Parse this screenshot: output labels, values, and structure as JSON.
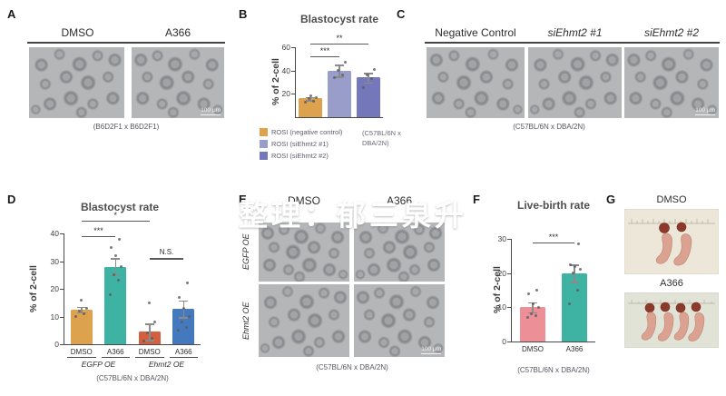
{
  "panels": {
    "A": {
      "letter": "A",
      "col_headers": [
        "DMSO",
        "A366"
      ],
      "caption": "(B6D2F1 x B6D2F1)",
      "scalebar": "100 μm"
    },
    "B": {
      "letter": "B",
      "legend": [
        {
          "label": "ROSI (negative control)",
          "color": "#dda24d"
        },
        {
          "label": "ROSI (siEhmt2 #1)",
          "color": "#999dc9"
        },
        {
          "label": "ROSI (siEhmt2 #2)",
          "color": "#7478ba"
        }
      ],
      "note": "(C57BL/6N x DBA/2N)"
    },
    "C": {
      "letter": "C",
      "col_headers": [
        "Negative Control",
        "siEhmt2 #1",
        "siEhmt2 #2"
      ],
      "caption": "(C57BL/6N x DBA/2N)",
      "scalebar": "100 μm"
    },
    "D": {
      "letter": "D"
    },
    "E": {
      "letter": "E",
      "col_headers": [
        "DMSO",
        "A366"
      ],
      "row_headers": [
        "EGFP OE",
        "Ehmt2 OE"
      ],
      "caption": "(C57BL/6N x DBA/2N)",
      "scalebar": "100 μm"
    },
    "F": {
      "letter": "F"
    },
    "G": {
      "letter": "G",
      "photo_titles": [
        "DMSO",
        "A366"
      ]
    }
  },
  "watermark": "整理：郁三泉升",
  "chart_data": [
    {
      "id": "B",
      "type": "bar",
      "title": "Blastocyst rate",
      "ylabel": "% of 2-cell",
      "ylim": [
        0,
        60
      ],
      "yticks": [
        20,
        40,
        60
      ],
      "categories": [
        "ROSI (negative control)",
        "ROSI (siEhmt2 #1)",
        "ROSI (siEhmt2 #2)"
      ],
      "values": [
        16,
        40,
        34
      ],
      "errors": [
        1.5,
        5,
        4
      ],
      "colors": [
        "#dda24d",
        "#999dc9",
        "#7478ba"
      ],
      "points": [
        [
          13,
          14,
          16,
          17,
          18
        ],
        [
          34,
          36,
          40,
          47
        ],
        [
          25,
          33,
          36,
          41
        ]
      ],
      "significance": [
        {
          "from": 0,
          "to": 1,
          "label": "***",
          "y": 52
        },
        {
          "from": 0,
          "to": 2,
          "label": "**",
          "y": 63
        }
      ],
      "legend_position": "bottom-left",
      "grid": false
    },
    {
      "id": "D",
      "type": "bar",
      "title": "Blastocyst rate",
      "ylabel": "% of 2-cell",
      "ylim": [
        0,
        40
      ],
      "yticks": [
        0,
        10,
        20,
        30,
        40
      ],
      "xlabels": [
        "DMSO",
        "A366",
        "DMSO",
        "A366"
      ],
      "groups": [
        {
          "label": "EGFP OE",
          "from": 0,
          "to": 1
        },
        {
          "label": "Ehmt2 OE",
          "from": 2,
          "to": 3
        }
      ],
      "values": [
        12.5,
        28,
        4.5,
        12.8
      ],
      "errors": [
        1,
        3,
        3,
        3
      ],
      "colors": [
        "#dda24d",
        "#3eb3a3",
        "#d2603f",
        "#4579be"
      ],
      "points": [
        [
          10,
          11,
          12,
          13,
          16
        ],
        [
          18,
          23,
          25,
          28,
          32,
          35,
          38
        ],
        [
          1,
          2,
          4,
          8,
          15
        ],
        [
          5,
          6,
          8,
          10,
          13,
          17,
          22
        ]
      ],
      "significance": [
        {
          "from": 0,
          "to": 1,
          "label": "***",
          "y": 39
        },
        {
          "from": 0,
          "to": 2,
          "label": "*",
          "y": 44.5
        },
        {
          "from": 2,
          "to": 3,
          "label": "N.S.",
          "y": 31
        }
      ],
      "caption": "(C57BL/6N x DBA/2N)",
      "grid": false
    },
    {
      "id": "F",
      "type": "bar",
      "title": "Live-birth rate",
      "ylabel": "% of 2-cell",
      "ylim": [
        0,
        30
      ],
      "yticks": [
        0,
        10,
        20,
        30
      ],
      "xlabels": [
        "DMSO",
        "A366"
      ],
      "values": [
        10,
        20
      ],
      "errors": [
        1.5,
        2.5
      ],
      "colors": [
        "#ec8f96",
        "#3eb3a3"
      ],
      "points": [
        [
          7,
          7.5,
          8,
          10,
          11,
          14,
          15
        ],
        [
          11,
          15,
          20,
          21,
          22,
          22.5,
          28.5
        ]
      ],
      "significance": [
        {
          "from": 0,
          "to": 1,
          "label": "***",
          "y": 29
        }
      ],
      "caption": "(C57BL/6N x DBA/2N)",
      "grid": false
    }
  ]
}
